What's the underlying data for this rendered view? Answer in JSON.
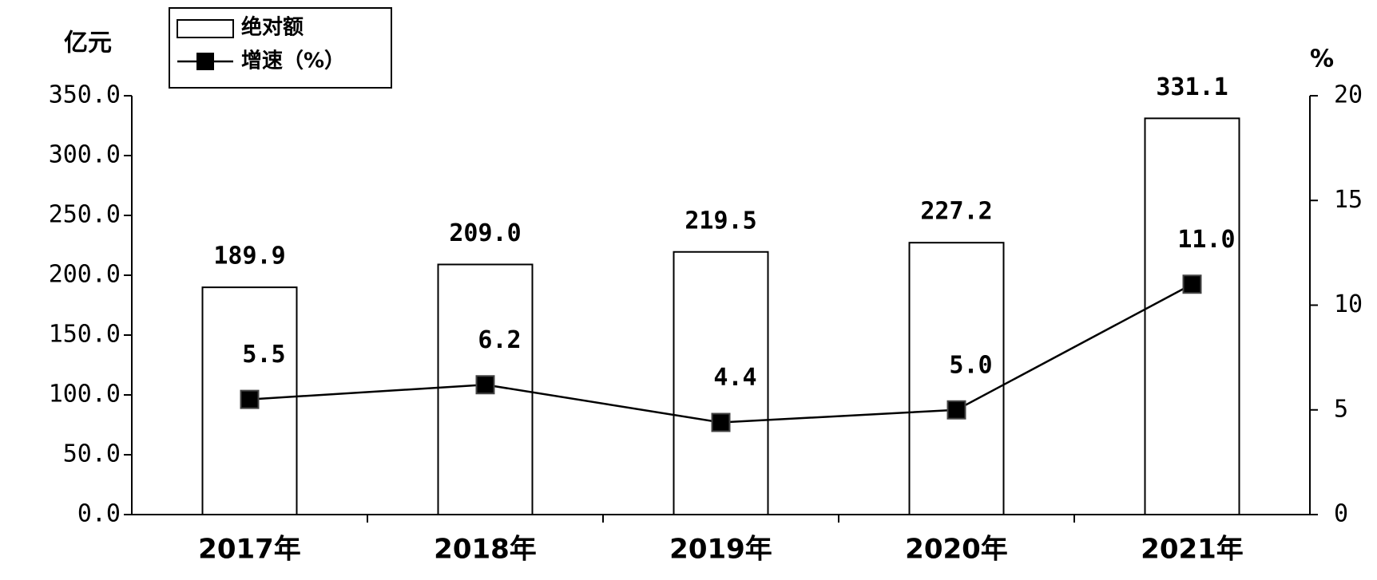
{
  "chart_data": {
    "type": "bar",
    "y_label": "亿元",
    "y2_label": "%",
    "categories": [
      "2017年",
      "2018年",
      "2019年",
      "2020年",
      "2021年"
    ],
    "series": [
      {
        "name": "绝对额",
        "type": "bar",
        "color": "#ffffff",
        "values": [
          189.9,
          209.0,
          219.5,
          227.2,
          331.1
        ],
        "value_labels": [
          "189.9",
          "209.0",
          "219.5",
          "227.2",
          "331.1"
        ]
      },
      {
        "name": "增速（%）",
        "type": "line",
        "axis": "y2",
        "color": "#000000",
        "values": [
          5.5,
          6.2,
          4.4,
          5.0,
          11.0
        ],
        "value_labels": [
          "5.5",
          "6.2",
          "4.4",
          "5.0",
          "11.0"
        ]
      }
    ],
    "ylim": [
      0,
      350
    ],
    "yticks": [
      {
        "value": 0,
        "label": "0.0"
      },
      {
        "value": 50,
        "label": "50.0"
      },
      {
        "value": 100,
        "label": "100.0"
      },
      {
        "value": 150,
        "label": "150.0"
      },
      {
        "value": 200,
        "label": "200.0"
      },
      {
        "value": 250,
        "label": "250.0"
      },
      {
        "value": 300,
        "label": "300.0"
      },
      {
        "value": 350,
        "label": "350.0"
      }
    ],
    "y2lim": [
      0,
      20
    ],
    "y2ticks": [
      0,
      5,
      10,
      15,
      20
    ],
    "legend": "top-left"
  }
}
